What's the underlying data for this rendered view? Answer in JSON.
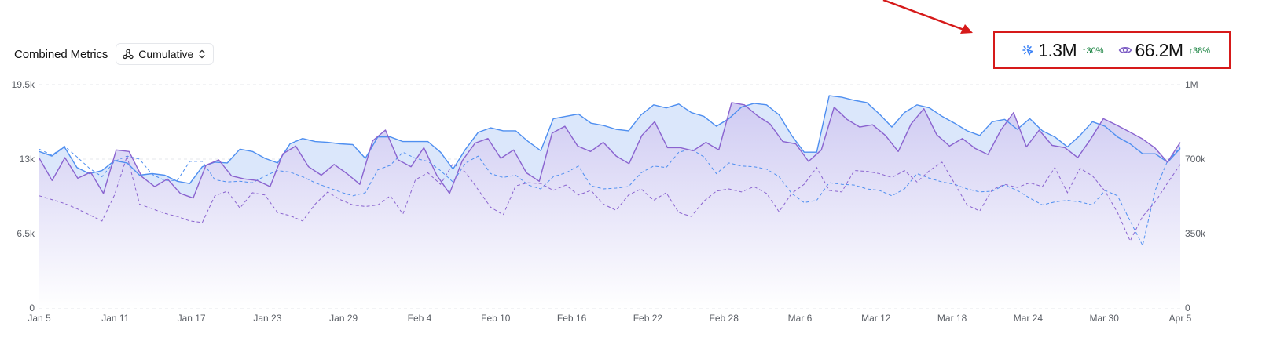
{
  "header": {
    "title": "Combined Metrics",
    "mode_selector": {
      "label": "Cumulative"
    }
  },
  "kpis": [
    {
      "icon": "click-icon",
      "value": "1.3M",
      "delta": "↑30%",
      "color": "#3b82f6"
    },
    {
      "icon": "eye-icon",
      "value": "66.2M",
      "delta": "↑38%",
      "color": "#7c5cc4"
    }
  ],
  "colors": {
    "clicks_line": "#4f8ff0",
    "clicks_fill": "#dbe7fb",
    "views_line": "#8a63cf",
    "views_fill_top": "#cfcaf2",
    "views_fill_bottom": "#ffffff",
    "annotation": "#d61a1a",
    "delta_up": "#15803d"
  },
  "chart_data": {
    "type": "area",
    "x_ticks": [
      "Jan 5",
      "Jan 11",
      "Jan 17",
      "Jan 23",
      "Jan 29",
      "Feb 4",
      "Feb 10",
      "Feb 16",
      "Feb 22",
      "Feb 28",
      "Mar 6",
      "Mar 12",
      "Mar 18",
      "Mar 24",
      "Mar 30",
      "Apr 5"
    ],
    "y_left": {
      "ticks": [
        "0",
        "6.5k",
        "13k",
        "19.5k"
      ],
      "ylim": [
        0,
        19500
      ]
    },
    "y_right": {
      "ticks": [
        "0",
        "350k",
        "700k",
        "1M"
      ],
      "ylim": [
        0,
        1050000
      ]
    },
    "grid": "horizontal dashed",
    "series": [
      {
        "axis": "left",
        "style": "solid",
        "values": [
          13667,
          13267,
          14067,
          12267,
          11733,
          12000,
          12867,
          12667,
          11600,
          11733,
          11600,
          11067,
          10867,
          12333,
          12733,
          12667,
          13867,
          13667,
          13067,
          12667,
          14333,
          14800,
          14533,
          14467,
          14333,
          14267,
          13067,
          14933,
          14933,
          14533,
          14533,
          14533,
          13600,
          12133,
          13867,
          15333,
          15733,
          15467,
          15467,
          14533,
          13733,
          16533,
          16733,
          16933,
          16133,
          15933,
          15600,
          15467,
          16867,
          17733,
          17467,
          17800,
          17067,
          16733,
          15867,
          16533,
          17533,
          17867,
          17733,
          16867,
          15067,
          13600,
          13600,
          18533,
          18400,
          18133,
          17933,
          16933,
          15800,
          17067,
          17733,
          17467,
          16733,
          16133,
          15467,
          15067,
          16267,
          16467,
          15600,
          16533,
          15467,
          14933,
          14067,
          15067,
          16267,
          15867,
          14933,
          14333,
          13467,
          13467,
          12733,
          13933
        ],
        "fill": "solid"
      },
      {
        "axis": "left",
        "style": "solid",
        "values": [
          13067,
          11133,
          13133,
          11333,
          11867,
          10000,
          13800,
          13667,
          11467,
          10600,
          11267,
          10000,
          9600,
          12467,
          12933,
          11533,
          11267,
          11133,
          10600,
          13467,
          14133,
          12333,
          11600,
          12533,
          11733,
          10800,
          14600,
          15533,
          12933,
          12333,
          14000,
          11600,
          10000,
          12867,
          14400,
          14800,
          13067,
          13800,
          11800,
          11067,
          15267,
          15867,
          14133,
          13667,
          14467,
          13267,
          12600,
          15067,
          16267,
          14000,
          14000,
          13733,
          14467,
          13800,
          17933,
          17733,
          16800,
          16067,
          14533,
          14333,
          12800,
          13800,
          17533,
          16467,
          15800,
          16000,
          15067,
          13667,
          16067,
          17400,
          15133,
          14133,
          14800,
          13933,
          13400,
          15533,
          17067,
          14067,
          15533,
          14200,
          14000,
          13133,
          14733,
          16533,
          16000,
          15400,
          14800,
          14000,
          12733,
          14467
        ],
        "fill": "gradient"
      },
      {
        "axis": "left",
        "style": "dashed",
        "values": [
          13867,
          13333,
          14133,
          13200,
          12200,
          11467,
          12800,
          13267,
          13000,
          11667,
          11133,
          11133,
          12800,
          12800,
          11200,
          11000,
          11067,
          10933,
          11533,
          12000,
          11867,
          11467,
          10933,
          10533,
          10133,
          9800,
          10067,
          12067,
          12467,
          13600,
          13067,
          12800,
          12000,
          11000,
          12667,
          13267,
          11733,
          11400,
          11600,
          10733,
          10400,
          11467,
          11800,
          12400,
          10667,
          10400,
          10467,
          10600,
          11800,
          12400,
          12267,
          13600,
          13867,
          13200,
          11733,
          12667,
          12400,
          12333,
          12133,
          11467,
          10000,
          9200,
          9400,
          10933,
          10800,
          10733,
          10400,
          10267,
          9800,
          10400,
          11733,
          11333,
          11000,
          10800,
          10400,
          10133,
          10200,
          10733,
          10267,
          9600,
          9000,
          9267,
          9400,
          9267,
          9000,
          10267,
          9800,
          7600,
          5467,
          10267,
          12867,
          14000
        ],
        "fill": "none"
      },
      {
        "axis": "left",
        "style": "dashed",
        "values": [
          9800,
          9467,
          9133,
          8667,
          8133,
          7600,
          9867,
          13267,
          9067,
          8667,
          8267,
          8000,
          7600,
          7467,
          9800,
          10200,
          8733,
          10067,
          9867,
          8333,
          8067,
          7600,
          9067,
          10133,
          9467,
          9000,
          8867,
          9000,
          9800,
          8200,
          11200,
          11800,
          10800,
          12600,
          11867,
          10333,
          8800,
          8133,
          10667,
          10933,
          10867,
          10267,
          10733,
          9867,
          10267,
          9067,
          8533,
          9867,
          10400,
          9400,
          10067,
          8333,
          8000,
          9333,
          10200,
          10400,
          10133,
          10600,
          10000,
          8400,
          10000,
          10800,
          12267,
          10267,
          10133,
          12000,
          11933,
          11733,
          11400,
          12000,
          11000,
          12000,
          12733,
          10867,
          9000,
          8467,
          10333,
          10800,
          10533,
          10933,
          10600,
          12267,
          10067,
          12200,
          11533,
          10200,
          8333,
          5867,
          8000,
          9267,
          10933,
          12533
        ],
        "fill": "none"
      }
    ]
  },
  "chart_labels": {
    "x_ticks": [
      "Jan 5",
      "Jan 11",
      "Jan 17",
      "Jan 23",
      "Jan 29",
      "Feb 4",
      "Feb 10",
      "Feb 16",
      "Feb 22",
      "Feb 28",
      "Mar 6",
      "Mar 12",
      "Mar 18",
      "Mar 24",
      "Mar 30",
      "Apr 5"
    ],
    "y_left": [
      "0",
      "6.5k",
      "13k",
      "19.5k"
    ],
    "y_right": [
      "0",
      "350k",
      "700k",
      "1M"
    ]
  }
}
